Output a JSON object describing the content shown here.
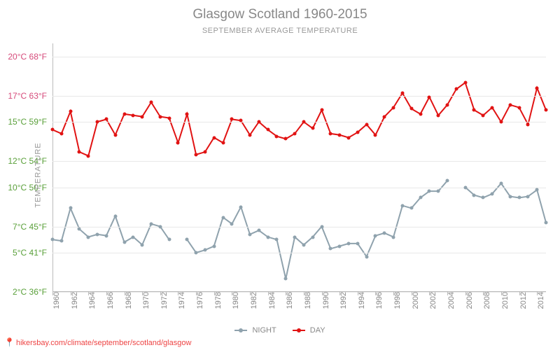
{
  "title": "Glasgow Scotland 1960-2015",
  "subtitle": "SEPTEMBER AVERAGE TEMPERATURE",
  "y_axis_label": "TEMPERATURE",
  "source_text": "hikersbay.com/climate/september/scotland/glasgow",
  "legend": {
    "night": "NIGHT",
    "day": "DAY"
  },
  "chart": {
    "type": "line",
    "x_years": [
      1960,
      1961,
      1962,
      1963,
      1964,
      1965,
      1966,
      1967,
      1968,
      1969,
      1970,
      1971,
      1972,
      1973,
      1974,
      1975,
      1976,
      1977,
      1978,
      1979,
      1980,
      1981,
      1982,
      1983,
      1984,
      1985,
      1986,
      1987,
      1988,
      1989,
      1990,
      1991,
      1992,
      1993,
      1994,
      1995,
      1996,
      1997,
      1998,
      1999,
      2000,
      2001,
      2002,
      2003,
      2004,
      2005,
      2006,
      2007,
      2008,
      2009,
      2010,
      2011,
      2012,
      2013,
      2014,
      2015
    ],
    "x_tick_labels": [
      "1960",
      "1962",
      "1964",
      "1966",
      "1968",
      "1970",
      "1972",
      "1974",
      "1976",
      "1978",
      "1980",
      "1982",
      "1984",
      "1986",
      "1988",
      "1990",
      "1992",
      "1994",
      "1996",
      "1998",
      "2000",
      "2002",
      "2004",
      "2006",
      "2008",
      "2010",
      "2012",
      "2014"
    ],
    "x_tick_years": [
      1960,
      1962,
      1964,
      1966,
      1968,
      1970,
      1972,
      1974,
      1976,
      1978,
      1980,
      1982,
      1984,
      1986,
      1988,
      1990,
      1992,
      1994,
      1996,
      1998,
      2000,
      2002,
      2004,
      2006,
      2008,
      2010,
      2012,
      2014
    ],
    "y_min_c": 2,
    "y_max_c": 21,
    "y_ticks": [
      {
        "c": 2,
        "label": "2°C 36°F",
        "color": "#5aa03a"
      },
      {
        "c": 5,
        "label": "5°C 41°F",
        "color": "#5aa03a"
      },
      {
        "c": 7,
        "label": "7°C 45°F",
        "color": "#5aa03a"
      },
      {
        "c": 10,
        "label": "10°C 50°F",
        "color": "#5aa03a"
      },
      {
        "c": 12,
        "label": "12°C 54°F",
        "color": "#5aa03a"
      },
      {
        "c": 15,
        "label": "15°C 59°F",
        "color": "#5aa03a"
      },
      {
        "c": 17,
        "label": "17°C 63°F",
        "color": "#d64a7a"
      },
      {
        "c": 20,
        "label": "20°C 68°F",
        "color": "#d64a7a"
      }
    ],
    "grid_color": "#e8e8e8",
    "axis_color": "#bbbbbb",
    "series": {
      "day": {
        "color": "#e11313",
        "line_width": 2,
        "marker_size": 5,
        "values_c": [
          14.4,
          14.1,
          15.8,
          12.7,
          12.4,
          15.0,
          15.2,
          14.0,
          15.6,
          15.5,
          15.4,
          16.5,
          15.4,
          15.3,
          13.4,
          15.6,
          12.5,
          12.7,
          13.8,
          13.4,
          15.2,
          15.1,
          14.0,
          15.0,
          14.4,
          13.9,
          13.7,
          14.1,
          15.0,
          14.5,
          15.9,
          14.1,
          14.0,
          13.8,
          14.2,
          14.8,
          14.0,
          15.4,
          16.1,
          17.2,
          16.0,
          15.6,
          16.9,
          15.5,
          16.3,
          17.5,
          18.0,
          15.9,
          15.5,
          16.1,
          15.0,
          16.3,
          16.1,
          14.8,
          17.6,
          15.9
        ]
      },
      "night": {
        "color": "#8fa2ad",
        "line_width": 2,
        "marker_size": 5,
        "values_c": [
          6.0,
          5.9,
          8.4,
          6.8,
          6.2,
          6.4,
          6.3,
          7.8,
          5.8,
          6.2,
          5.6,
          7.2,
          7.0,
          6.0,
          null,
          6.0,
          5.0,
          5.2,
          5.5,
          7.7,
          7.2,
          8.5,
          6.4,
          6.7,
          6.2,
          6.0,
          3.0,
          6.2,
          5.6,
          6.2,
          7.0,
          5.3,
          5.5,
          5.7,
          5.7,
          4.7,
          6.3,
          6.5,
          6.2,
          8.6,
          8.4,
          9.2,
          9.7,
          9.7,
          10.5,
          null,
          10.0,
          9.4,
          9.2,
          9.5,
          10.3,
          9.3,
          9.2,
          9.3,
          9.8,
          7.3
        ]
      }
    }
  },
  "style": {
    "title_color": "#888888",
    "subtitle_color": "#999999",
    "background_color": "#ffffff",
    "tick_font_size": 11,
    "title_font_size": 19
  }
}
